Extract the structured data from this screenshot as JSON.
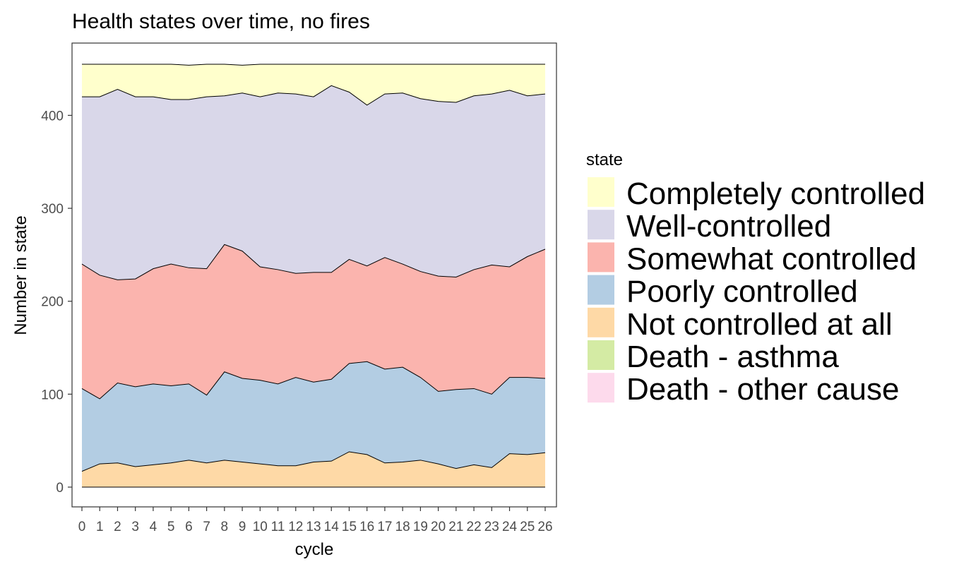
{
  "chart_data": {
    "type": "area",
    "stacked": true,
    "title": "Health states over time, no fires",
    "xlabel": "cycle",
    "ylabel": "Number in state",
    "x": [
      0,
      1,
      2,
      3,
      4,
      5,
      6,
      7,
      8,
      9,
      10,
      11,
      12,
      13,
      14,
      15,
      16,
      17,
      18,
      19,
      20,
      21,
      22,
      23,
      24,
      25,
      26
    ],
    "x_tick_labels": [
      "0",
      "1",
      "2",
      "3",
      "4",
      "5",
      "6",
      "7",
      "8",
      "9",
      "10",
      "11",
      "12",
      "13",
      "14",
      "15",
      "16",
      "17",
      "18",
      "19",
      "20",
      "21",
      "22",
      "23",
      "24",
      "25",
      "26"
    ],
    "xlim": [
      0,
      26
    ],
    "ylim": [
      0,
      455
    ],
    "y_ticks": [
      0,
      100,
      200,
      300,
      400
    ],
    "y_tick_labels": [
      "0",
      "100",
      "200",
      "300",
      "400"
    ],
    "grid": false,
    "legend": {
      "title": "state",
      "position": "right"
    },
    "series": [
      {
        "name": "Completely controlled",
        "color": "#FFFFCC",
        "values": [
          35,
          35,
          27,
          35,
          35,
          38,
          37,
          35,
          34,
          30,
          35,
          31,
          32,
          35,
          23,
          30,
          44,
          32,
          31,
          37,
          40,
          41,
          34,
          32,
          28,
          34,
          32
        ]
      },
      {
        "name": "Well-controlled",
        "color": "#D9D7E9",
        "values": [
          180,
          192,
          205,
          196,
          185,
          177,
          181,
          185,
          160,
          170,
          183,
          190,
          193,
          189,
          201,
          180,
          173,
          176,
          184,
          186,
          188,
          188,
          187,
          184,
          190,
          173,
          167
        ]
      },
      {
        "name": "Somewhat controlled",
        "color": "#FBB4AE",
        "values": [
          134,
          133,
          111,
          116,
          124,
          131,
          125,
          136,
          137,
          137,
          122,
          123,
          112,
          118,
          115,
          112,
          103,
          120,
          111,
          114,
          124,
          121,
          128,
          139,
          119,
          130,
          139
        ]
      },
      {
        "name": "Poorly controlled",
        "color": "#B3CDE3",
        "values": [
          89,
          70,
          86,
          86,
          87,
          83,
          82,
          73,
          95,
          90,
          90,
          88,
          95,
          86,
          88,
          95,
          100,
          101,
          102,
          89,
          78,
          85,
          82,
          79,
          82,
          83,
          80
        ]
      },
      {
        "name": "Not controlled at all",
        "color": "#FED9A6",
        "values": [
          17,
          25,
          26,
          22,
          24,
          26,
          29,
          26,
          29,
          27,
          25,
          23,
          23,
          27,
          28,
          38,
          35,
          26,
          27,
          29,
          25,
          20,
          24,
          21,
          36,
          35,
          37
        ]
      },
      {
        "name": "Death - asthma",
        "color": "#D4EBA4",
        "values": [
          0,
          0,
          0,
          0,
          0,
          0,
          0,
          0,
          0,
          0,
          0,
          0,
          0,
          0,
          0,
          0,
          0,
          0,
          0,
          0,
          0,
          0,
          0,
          0,
          0,
          0,
          0
        ]
      },
      {
        "name": "Death - other cause",
        "color": "#FDDAEC",
        "values": [
          0,
          0,
          0,
          0,
          0,
          0,
          0,
          0,
          0,
          0,
          0,
          0,
          0,
          0,
          0,
          0,
          0,
          0,
          0,
          0,
          0,
          0,
          0,
          0,
          0,
          0,
          0
        ]
      }
    ]
  }
}
